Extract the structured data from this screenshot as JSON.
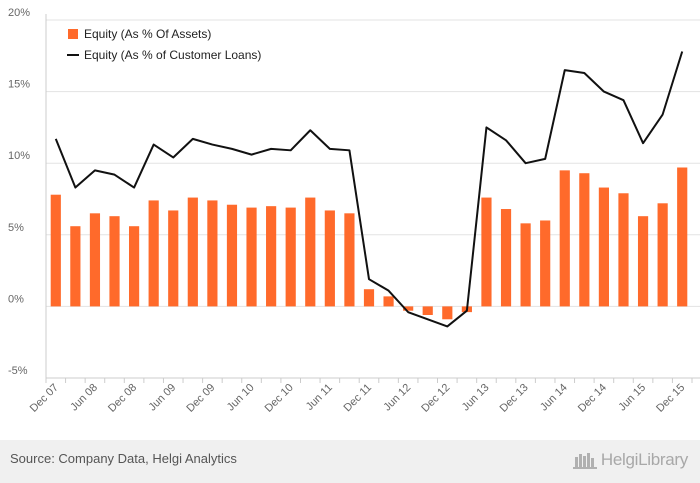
{
  "chart_data": {
    "type": "bar+line",
    "x_tick_labels": [
      "Dec 07",
      "Jun 08",
      "Dec 08",
      "Jun 09",
      "Dec 09",
      "Jun 10",
      "Dec 10",
      "Jun 11",
      "Dec 11",
      "Jun 12",
      "Dec 12",
      "Jun 13",
      "Dec 13",
      "Jun 14",
      "Dec 14",
      "Jun 15",
      "Dec 15"
    ],
    "ylim": [
      -5,
      20
    ],
    "y_ticks": [
      -5,
      0,
      5,
      10,
      15,
      20
    ],
    "y_tick_format": "%",
    "grid": "horizontal",
    "legend_position": "top-left",
    "series": [
      {
        "name": "Equity (As % Of Assets)",
        "type": "bar",
        "color": "#ff6a2b",
        "values": [
          7.8,
          5.6,
          6.5,
          6.3,
          5.6,
          7.4,
          6.7,
          7.6,
          7.4,
          7.1,
          6.9,
          7.0,
          6.9,
          7.6,
          6.7,
          6.5,
          1.2,
          0.7,
          -0.3,
          -0.6,
          -0.9,
          -0.4,
          7.6,
          6.8,
          5.8,
          6.0,
          9.5,
          9.3,
          8.3,
          7.9,
          6.3,
          7.2,
          9.7
        ]
      },
      {
        "name": "Equity (As % of Customer Loans)",
        "type": "line",
        "color": "#111111",
        "values": [
          11.7,
          8.3,
          9.5,
          9.2,
          8.3,
          11.3,
          10.4,
          11.7,
          11.3,
          11.0,
          10.6,
          11.0,
          10.9,
          12.3,
          11.0,
          10.9,
          1.9,
          1.1,
          -0.4,
          -0.9,
          -1.4,
          -0.3,
          12.5,
          11.6,
          10.0,
          10.3,
          16.5,
          16.3,
          15.0,
          14.4,
          11.4,
          13.4,
          17.8
        ]
      }
    ]
  },
  "footer": {
    "source": "Source: Company Data, Helgi Analytics",
    "brand": "HelgiLibrary"
  }
}
